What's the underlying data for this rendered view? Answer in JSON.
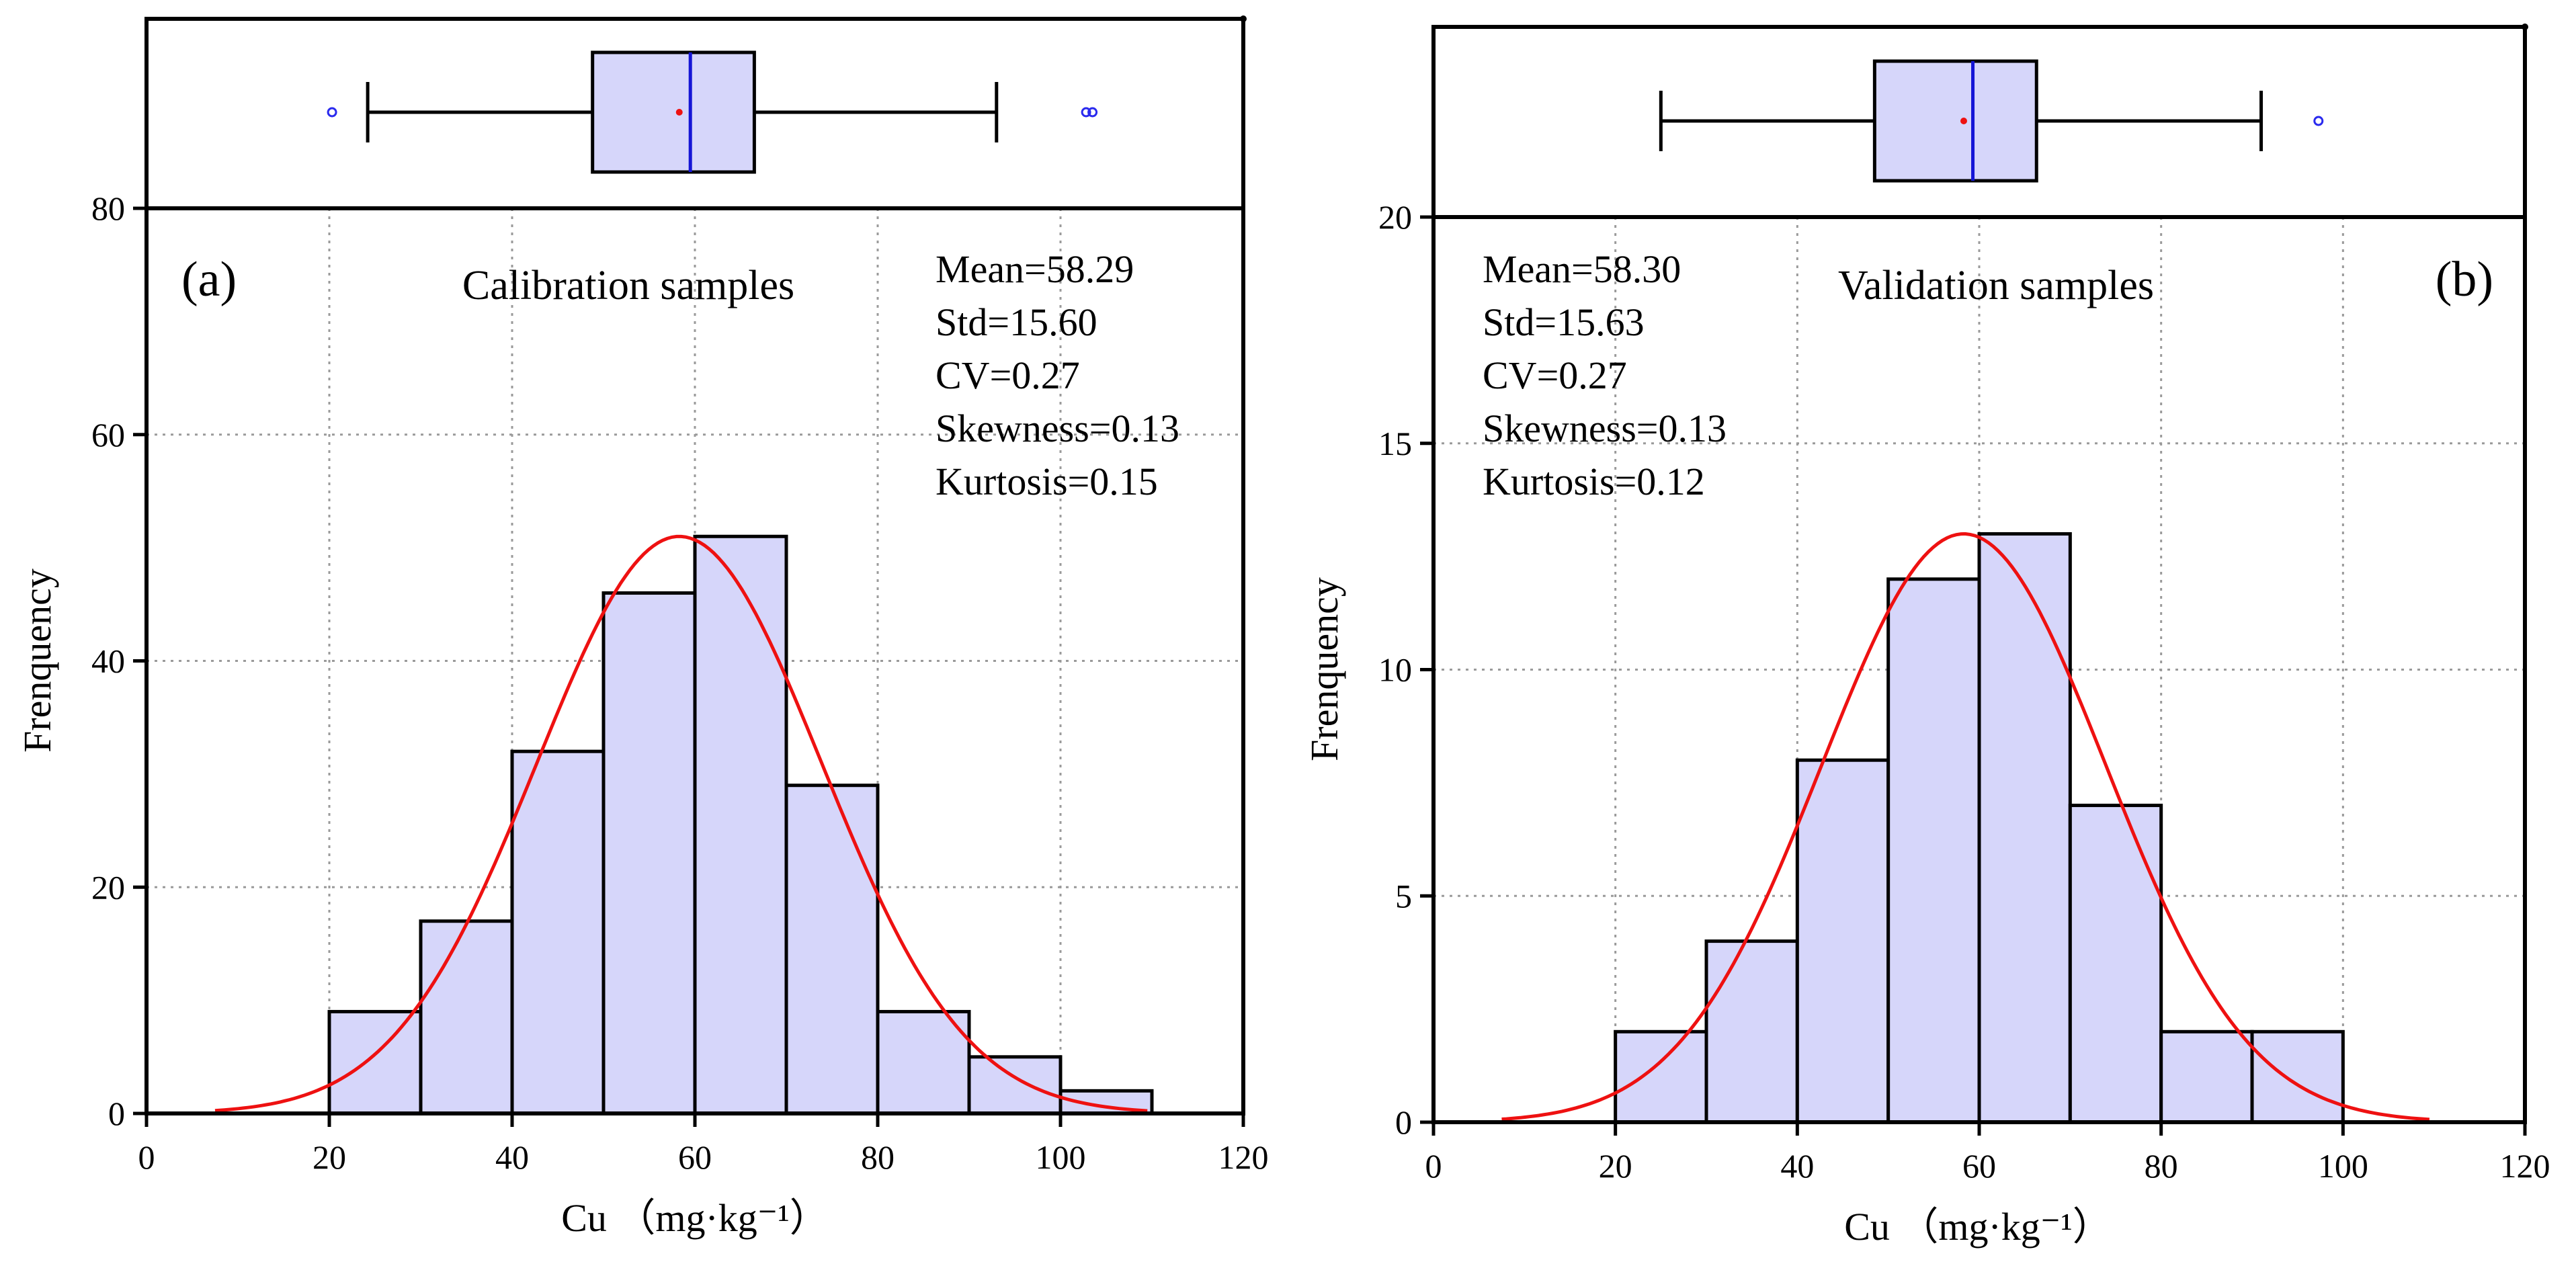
{
  "colors": {
    "bar_fill": "#d6d6fa",
    "curve": "#ee1111",
    "median": "#1515d6",
    "outlier": "#2a2aee"
  },
  "chart_data": [
    {
      "type": "bar",
      "panel": "(a)",
      "title": "Calibration samples",
      "xlabel": "Cu （mg·kg⁻¹）",
      "ylabel": "Frenquency",
      "xlim": [
        0,
        120
      ],
      "ylim": [
        0,
        80
      ],
      "xticks": [
        0,
        20,
        40,
        60,
        80,
        100,
        120
      ],
      "yticks": [
        0,
        20,
        40,
        60,
        80
      ],
      "bin_edges": [
        20,
        30,
        40,
        50,
        60,
        70,
        80,
        90,
        100,
        110
      ],
      "values": [
        9,
        17,
        32,
        46,
        51,
        29,
        9,
        5,
        2
      ],
      "normal_curve": {
        "mean": 58.29,
        "std": 15.6,
        "peak": 51,
        "x_range": [
          7.5,
          109.5
        ]
      },
      "boxplot": {
        "whisker_low": 24.2,
        "q1": 48.8,
        "median": 59.5,
        "mean": 58.29,
        "q3": 66.5,
        "whisker_high": 93,
        "outliers": [
          20.3,
          102.8,
          103.5
        ]
      },
      "stats": [
        "Mean=58.29",
        "Std=15.60",
        "CV=0.27",
        "Skewness=0.13",
        "Kurtosis=0.15"
      ]
    },
    {
      "type": "bar",
      "panel": "(b)",
      "title": "Validation samples",
      "xlabel": "Cu （mg·kg⁻¹）",
      "ylabel": "Frenquency",
      "xlim": [
        0,
        120
      ],
      "ylim": [
        0,
        20
      ],
      "xticks": [
        0,
        20,
        40,
        60,
        80,
        100,
        120
      ],
      "yticks": [
        0,
        5,
        10,
        15,
        20
      ],
      "bin_edges": [
        20,
        30,
        40,
        50,
        60,
        70,
        80,
        90,
        100
      ],
      "values": [
        2,
        4,
        8,
        12,
        13,
        7,
        2,
        2
      ],
      "normal_curve": {
        "mean": 58.3,
        "std": 15.63,
        "peak": 13,
        "x_range": [
          7.5,
          109.5
        ]
      },
      "boxplot": {
        "whisker_low": 25,
        "q1": 48.5,
        "median": 59.3,
        "mean": 58.3,
        "q3": 66.3,
        "whisker_high": 91,
        "outliers": [
          97.3
        ]
      },
      "stats": [
        "Mean=58.30",
        "Std=15.63",
        "CV=0.27",
        "Skewness=0.13",
        "Kurtosis=0.12"
      ]
    }
  ]
}
